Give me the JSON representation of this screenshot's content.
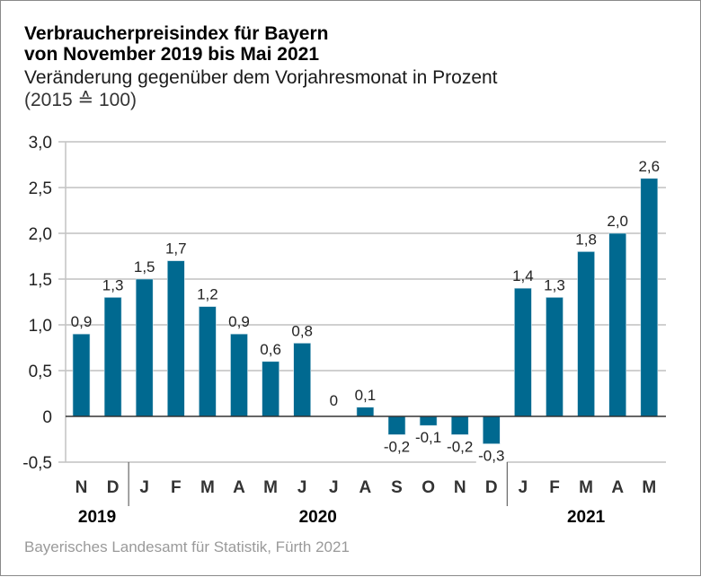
{
  "chart_data": {
    "type": "bar",
    "title": "Verbraucherpreisindex für Bayern",
    "title_line2": "von November 2019 bis Mai 2021",
    "subtitle": "Veränderung gegenüber dem Vorjahresmonat in Prozent",
    "subtitle_line2": "(2015 ≙ 100)",
    "xlabel": "",
    "ylabel": "",
    "ylim": [
      -0.5,
      3.0
    ],
    "yticks": [
      3.0,
      2.5,
      2.0,
      1.5,
      1.0,
      0.5,
      0,
      -0.5
    ],
    "ytick_labels": [
      "3,0",
      "2,5",
      "2,0",
      "1,5",
      "1,0",
      "0,5",
      "0",
      "-0,5"
    ],
    "grid": true,
    "legend": "none",
    "categories": [
      "N",
      "D",
      "J",
      "F",
      "M",
      "A",
      "M",
      "J",
      "J",
      "A",
      "S",
      "O",
      "N",
      "D",
      "J",
      "F",
      "M",
      "A",
      "M"
    ],
    "years": [
      {
        "label": "2019",
        "start": 0,
        "end": 1
      },
      {
        "label": "2020",
        "start": 2,
        "end": 13
      },
      {
        "label": "2021",
        "start": 14,
        "end": 18
      }
    ],
    "values": [
      0.9,
      1.3,
      1.5,
      1.7,
      1.2,
      0.9,
      0.6,
      0.8,
      0,
      0.1,
      -0.2,
      -0.1,
      -0.2,
      -0.3,
      1.4,
      1.3,
      1.8,
      2.0,
      2.6
    ],
    "value_labels": [
      "0,9",
      "1,3",
      "1,5",
      "1,7",
      "1,2",
      "0,9",
      "0,6",
      "0,8",
      "0",
      "0,1",
      "-0,2",
      "-0,1",
      "-0,2",
      "-0,3",
      "1,4",
      "1,3",
      "1,8",
      "2,0",
      "2,6"
    ],
    "bar_color": "#006990",
    "source": "Bayerisches Landesamt für Statistik, Fürth 2021"
  }
}
